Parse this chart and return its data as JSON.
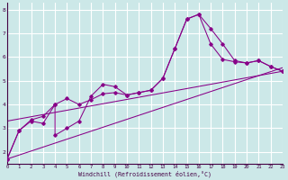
{
  "xlabel": "Windchill (Refroidissement éolien,°C)",
  "bg_color": "#cce8e8",
  "line_color": "#880088",
  "grid_color": "#ffffff",
  "xmin": 0,
  "xmax": 23,
  "ymin": 1.5,
  "ymax": 8.3,
  "series1": [
    [
      0,
      1.7
    ],
    [
      1,
      2.9
    ],
    [
      2,
      3.3
    ],
    [
      3,
      3.2
    ],
    [
      4,
      4.0
    ],
    [
      4,
      2.7
    ],
    [
      5,
      3.0
    ],
    [
      6,
      3.3
    ],
    [
      7,
      4.35
    ],
    [
      8,
      4.85
    ],
    [
      9,
      4.75
    ],
    [
      10,
      4.4
    ],
    [
      11,
      4.5
    ],
    [
      12,
      4.6
    ],
    [
      13,
      5.1
    ],
    [
      14,
      6.35
    ],
    [
      15,
      7.6
    ],
    [
      16,
      7.8
    ],
    [
      17,
      7.2
    ],
    [
      18,
      6.55
    ],
    [
      19,
      5.85
    ],
    [
      20,
      5.75
    ],
    [
      21,
      5.85
    ],
    [
      22,
      5.6
    ],
    [
      23,
      5.4
    ]
  ],
  "series2": [
    [
      0,
      1.7
    ],
    [
      1,
      2.9
    ],
    [
      2,
      3.35
    ],
    [
      3,
      3.5
    ],
    [
      4,
      4.0
    ],
    [
      5,
      4.25
    ],
    [
      6,
      4.0
    ],
    [
      7,
      4.2
    ],
    [
      8,
      4.45
    ],
    [
      9,
      4.5
    ],
    [
      10,
      4.4
    ],
    [
      11,
      4.5
    ],
    [
      12,
      4.6
    ],
    [
      13,
      5.1
    ],
    [
      14,
      6.35
    ],
    [
      15,
      7.6
    ],
    [
      16,
      7.8
    ],
    [
      17,
      6.55
    ],
    [
      18,
      5.9
    ],
    [
      19,
      5.8
    ],
    [
      20,
      5.75
    ],
    [
      21,
      5.85
    ],
    [
      22,
      5.6
    ],
    [
      23,
      5.4
    ]
  ],
  "line3": [
    [
      0,
      1.7
    ],
    [
      23,
      5.55
    ]
  ],
  "line4": [
    [
      0,
      3.3
    ],
    [
      23,
      5.4
    ]
  ]
}
